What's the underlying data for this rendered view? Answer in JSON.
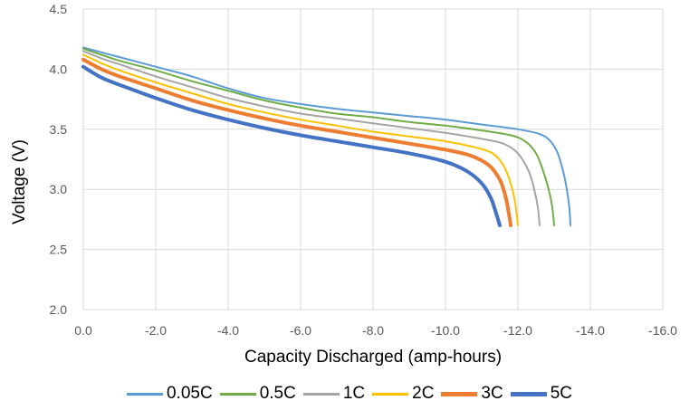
{
  "chart_data": {
    "type": "line",
    "title": "",
    "xlabel": "Capacity Discharged (amp-hours)",
    "ylabel": "Voltage (V)",
    "xlim": [
      0,
      -16
    ],
    "ylim": [
      2.0,
      4.5
    ],
    "x_ticks": [
      "0.0",
      "-2.0",
      "-4.0",
      "-6.0",
      "-8.0",
      "-10.0",
      "-12.0",
      "-14.0",
      "-16.0"
    ],
    "y_ticks": [
      "2.0",
      "2.5",
      "3.0",
      "3.5",
      "4.0",
      "4.5"
    ],
    "grid": true,
    "legend_position": "bottom",
    "series": [
      {
        "name": "0.05C",
        "color": "#5B9BD5",
        "width": 2,
        "points": [
          [
            0,
            4.18
          ],
          [
            -0.5,
            4.14
          ],
          [
            -1,
            4.1
          ],
          [
            -2,
            4.02
          ],
          [
            -3,
            3.94
          ],
          [
            -4,
            3.84
          ],
          [
            -5,
            3.76
          ],
          [
            -6,
            3.71
          ],
          [
            -7,
            3.67
          ],
          [
            -8,
            3.64
          ],
          [
            -9,
            3.61
          ],
          [
            -10,
            3.58
          ],
          [
            -11,
            3.54
          ],
          [
            -12,
            3.5
          ],
          [
            -12.6,
            3.46
          ],
          [
            -12.9,
            3.4
          ],
          [
            -13.1,
            3.3
          ],
          [
            -13.25,
            3.15
          ],
          [
            -13.35,
            3.0
          ],
          [
            -13.42,
            2.85
          ],
          [
            -13.45,
            2.7
          ]
        ]
      },
      {
        "name": "0.5C",
        "color": "#70AD47",
        "width": 2,
        "points": [
          [
            0,
            4.17
          ],
          [
            -0.5,
            4.12
          ],
          [
            -1,
            4.07
          ],
          [
            -2,
            3.99
          ],
          [
            -3,
            3.9
          ],
          [
            -4,
            3.82
          ],
          [
            -5,
            3.74
          ],
          [
            -6,
            3.68
          ],
          [
            -7,
            3.63
          ],
          [
            -8,
            3.6
          ],
          [
            -9,
            3.56
          ],
          [
            -10,
            3.53
          ],
          [
            -11,
            3.49
          ],
          [
            -11.8,
            3.45
          ],
          [
            -12.2,
            3.4
          ],
          [
            -12.5,
            3.3
          ],
          [
            -12.7,
            3.15
          ],
          [
            -12.85,
            3.0
          ],
          [
            -12.95,
            2.85
          ],
          [
            -13.0,
            2.7
          ]
        ]
      },
      {
        "name": "1C",
        "color": "#A5A5A5",
        "width": 2,
        "points": [
          [
            0,
            4.15
          ],
          [
            -0.5,
            4.09
          ],
          [
            -1,
            4.04
          ],
          [
            -2,
            3.94
          ],
          [
            -3,
            3.85
          ],
          [
            -4,
            3.76
          ],
          [
            -5,
            3.69
          ],
          [
            -6,
            3.63
          ],
          [
            -7,
            3.59
          ],
          [
            -8,
            3.55
          ],
          [
            -9,
            3.51
          ],
          [
            -10,
            3.47
          ],
          [
            -11,
            3.42
          ],
          [
            -11.6,
            3.38
          ],
          [
            -12.0,
            3.3
          ],
          [
            -12.3,
            3.15
          ],
          [
            -12.45,
            3.0
          ],
          [
            -12.55,
            2.85
          ],
          [
            -12.6,
            2.7
          ]
        ]
      },
      {
        "name": "2C",
        "color": "#FFC000",
        "width": 2,
        "points": [
          [
            0,
            4.12
          ],
          [
            -0.5,
            4.05
          ],
          [
            -1,
            3.99
          ],
          [
            -2,
            3.89
          ],
          [
            -3,
            3.8
          ],
          [
            -4,
            3.71
          ],
          [
            -5,
            3.64
          ],
          [
            -6,
            3.58
          ],
          [
            -7,
            3.53
          ],
          [
            -8,
            3.48
          ],
          [
            -9,
            3.44
          ],
          [
            -10,
            3.4
          ],
          [
            -10.8,
            3.35
          ],
          [
            -11.3,
            3.3
          ],
          [
            -11.6,
            3.2
          ],
          [
            -11.8,
            3.05
          ],
          [
            -11.92,
            2.9
          ],
          [
            -12.0,
            2.7
          ]
        ]
      },
      {
        "name": "3C",
        "color": "#ED7D31",
        "width": 4,
        "points": [
          [
            0,
            4.08
          ],
          [
            -0.5,
            4.0
          ],
          [
            -1,
            3.94
          ],
          [
            -2,
            3.84
          ],
          [
            -3,
            3.74
          ],
          [
            -4,
            3.66
          ],
          [
            -5,
            3.59
          ],
          [
            -6,
            3.53
          ],
          [
            -7,
            3.48
          ],
          [
            -8,
            3.43
          ],
          [
            -9,
            3.38
          ],
          [
            -10,
            3.33
          ],
          [
            -10.7,
            3.28
          ],
          [
            -11.2,
            3.2
          ],
          [
            -11.5,
            3.08
          ],
          [
            -11.65,
            2.95
          ],
          [
            -11.75,
            2.8
          ],
          [
            -11.8,
            2.7
          ]
        ]
      },
      {
        "name": "5C",
        "color": "#4472C4",
        "width": 4,
        "points": [
          [
            0,
            4.02
          ],
          [
            -0.5,
            3.93
          ],
          [
            -1,
            3.87
          ],
          [
            -2,
            3.76
          ],
          [
            -3,
            3.66
          ],
          [
            -4,
            3.58
          ],
          [
            -5,
            3.51
          ],
          [
            -6,
            3.45
          ],
          [
            -7,
            3.4
          ],
          [
            -8,
            3.35
          ],
          [
            -9,
            3.3
          ],
          [
            -10,
            3.23
          ],
          [
            -10.6,
            3.15
          ],
          [
            -11.0,
            3.05
          ],
          [
            -11.25,
            2.93
          ],
          [
            -11.4,
            2.8
          ],
          [
            -11.5,
            2.7
          ]
        ]
      }
    ]
  }
}
